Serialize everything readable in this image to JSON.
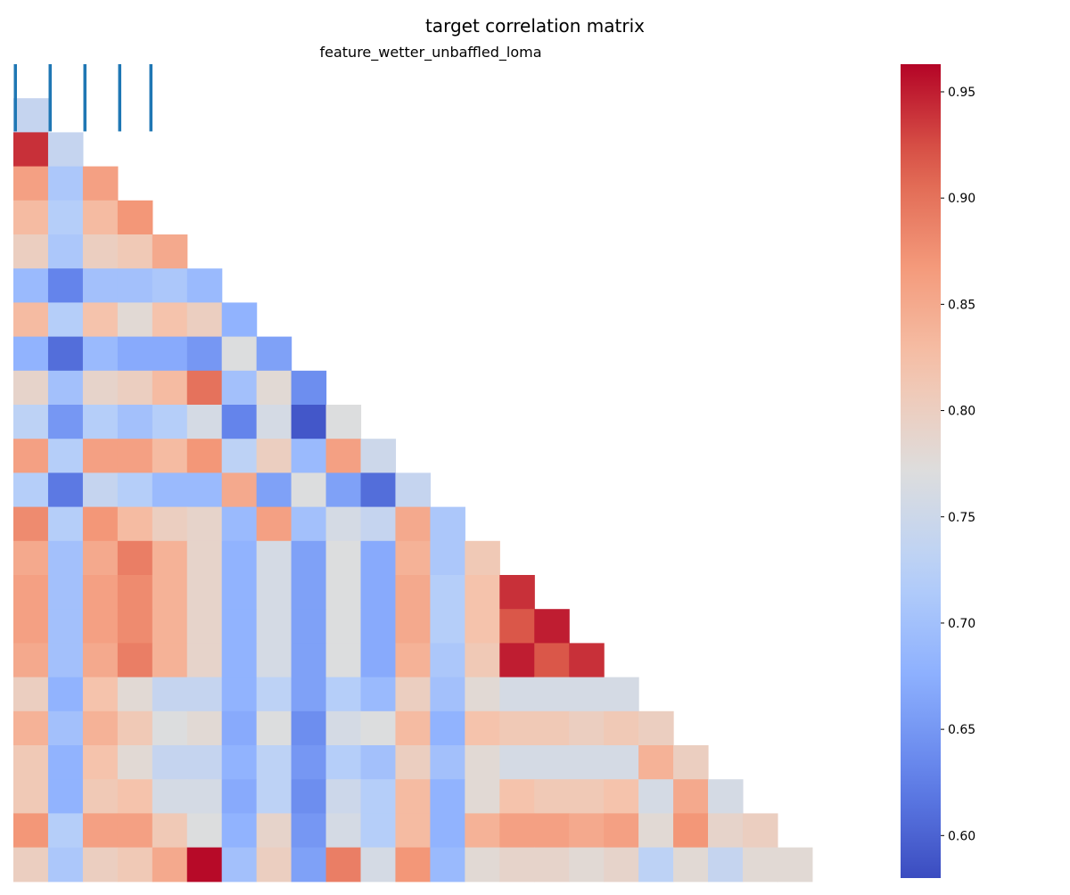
{
  "chart_data": {
    "type": "heatmap",
    "title": "target correlation matrix",
    "subtitle": "feature_wetter_unbaffled_loma",
    "colormap": "coolwarm",
    "color_range": [
      0.58,
      0.963
    ],
    "colorbar_ticks": [
      0.6,
      0.65,
      0.7,
      0.75,
      0.8,
      0.85,
      0.9,
      0.95
    ],
    "colorbar_tick_labels": [
      "0.60",
      "0.65",
      "0.70",
      "0.75",
      "0.80",
      "0.85",
      "0.90",
      "0.95"
    ],
    "xlabel": "",
    "ylabel": "",
    "mask": "upper triangle (diagonal hidden)",
    "top_row_marks": [
      0,
      1,
      2,
      3,
      4
    ],
    "top_row_mark_color": "#1f77b4",
    "rows": [
      [],
      [
        0.74
      ],
      [
        0.94,
        0.74
      ],
      [
        0.86,
        0.71,
        0.86
      ],
      [
        0.83,
        0.72,
        0.83,
        0.87
      ],
      [
        0.8,
        0.71,
        0.8,
        0.81,
        0.85
      ],
      [
        0.69,
        0.63,
        0.7,
        0.7,
        0.71,
        0.69
      ],
      [
        0.83,
        0.72,
        0.82,
        0.78,
        0.82,
        0.8,
        0.68
      ],
      [
        0.68,
        0.61,
        0.69,
        0.67,
        0.67,
        0.65,
        0.77,
        0.66
      ],
      [
        0.79,
        0.7,
        0.79,
        0.8,
        0.83,
        0.9,
        0.7,
        0.78,
        0.64
      ],
      [
        0.73,
        0.65,
        0.72,
        0.7,
        0.72,
        0.76,
        0.63,
        0.76,
        0.59,
        0.77
      ],
      [
        0.86,
        0.72,
        0.86,
        0.86,
        0.83,
        0.87,
        0.73,
        0.8,
        0.69,
        0.86,
        0.75
      ],
      [
        0.72,
        0.62,
        0.74,
        0.72,
        0.69,
        0.69,
        0.85,
        0.66,
        0.77,
        0.66,
        0.61,
        0.74
      ],
      [
        0.88,
        0.72,
        0.87,
        0.83,
        0.8,
        0.79,
        0.69,
        0.86,
        0.7,
        0.76,
        0.74,
        0.85,
        0.71
      ],
      [
        0.85,
        0.7,
        0.85,
        0.89,
        0.84,
        0.79,
        0.68,
        0.76,
        0.66,
        0.77,
        0.67,
        0.84,
        0.71,
        0.81
      ],
      [
        0.86,
        0.7,
        0.86,
        0.88,
        0.84,
        0.79,
        0.68,
        0.76,
        0.66,
        0.77,
        0.67,
        0.85,
        0.72,
        0.82,
        0.94
      ],
      [
        0.86,
        0.7,
        0.86,
        0.88,
        0.84,
        0.79,
        0.68,
        0.76,
        0.66,
        0.77,
        0.67,
        0.85,
        0.72,
        0.82,
        0.92,
        0.95
      ],
      [
        0.85,
        0.7,
        0.85,
        0.89,
        0.84,
        0.79,
        0.68,
        0.76,
        0.66,
        0.77,
        0.67,
        0.84,
        0.71,
        0.81,
        0.95,
        0.92,
        0.94
      ],
      [
        0.8,
        0.68,
        0.82,
        0.78,
        0.74,
        0.74,
        0.68,
        0.73,
        0.66,
        0.72,
        0.69,
        0.8,
        0.7,
        0.78,
        0.76,
        0.76,
        0.76,
        0.76
      ],
      [
        0.84,
        0.7,
        0.84,
        0.81,
        0.77,
        0.78,
        0.67,
        0.77,
        0.64,
        0.76,
        0.77,
        0.83,
        0.68,
        0.82,
        0.81,
        0.81,
        0.8,
        0.81,
        0.8
      ],
      [
        0.81,
        0.68,
        0.82,
        0.78,
        0.74,
        0.74,
        0.68,
        0.73,
        0.65,
        0.72,
        0.7,
        0.8,
        0.7,
        0.78,
        0.76,
        0.76,
        0.76,
        0.76,
        0.84,
        0.8
      ],
      [
        0.81,
        0.68,
        0.81,
        0.82,
        0.76,
        0.76,
        0.67,
        0.73,
        0.64,
        0.75,
        0.72,
        0.83,
        0.68,
        0.78,
        0.82,
        0.81,
        0.81,
        0.82,
        0.76,
        0.85,
        0.76
      ],
      [
        0.87,
        0.72,
        0.86,
        0.86,
        0.81,
        0.77,
        0.68,
        0.79,
        0.65,
        0.76,
        0.72,
        0.83,
        0.68,
        0.84,
        0.86,
        0.86,
        0.85,
        0.86,
        0.78,
        0.87,
        0.79,
        0.8
      ],
      [
        0.8,
        0.71,
        0.8,
        0.81,
        0.85,
        0.96,
        0.7,
        0.8,
        0.66,
        0.89,
        0.76,
        0.87,
        0.69,
        0.78,
        0.79,
        0.79,
        0.78,
        0.79,
        0.73,
        0.78,
        0.74,
        0.78,
        0.78
      ]
    ]
  }
}
